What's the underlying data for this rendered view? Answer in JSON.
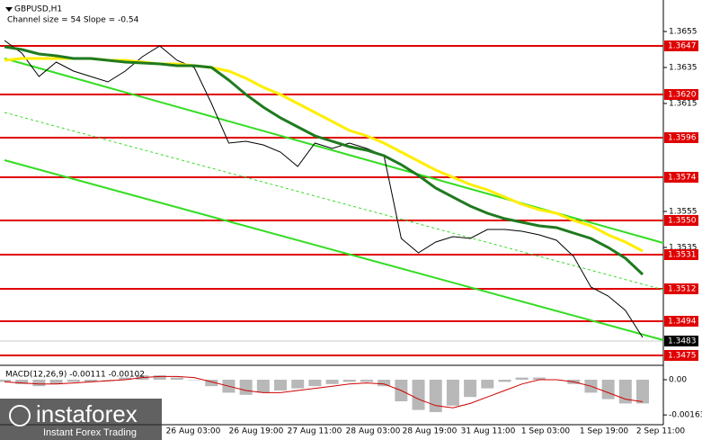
{
  "chart_data": [
    {
      "type": "line",
      "title": "GBPUSD,H1",
      "subtitle": "Channel size = 54 Slope = -0.54",
      "ylim": [
        1.347,
        1.36635
      ],
      "yticks": [
        1.3655,
        1.3635,
        1.3615,
        1.3555,
        1.3535
      ],
      "x_labels": [
        "26 Aug 03:00",
        "26 Aug 19:00",
        "27 Aug 11:00",
        "28 Aug 03:00",
        "28 Aug 19:00",
        "31 Aug 11:00",
        "1 Sep 03:00",
        "1 Sep 19:00",
        "2 Sep 11:00"
      ],
      "levels": [
        1.3647,
        {
          "value": 1.362,
          "label": "1.3620"
        },
        1.3596,
        1.3574,
        {
          "value": 1.355,
          "label": "1.3550"
        },
        1.3531,
        1.3512,
        1.3494,
        1.3475
      ],
      "level_color": "#e00000",
      "current_price": 1.3483,
      "series": [
        {
          "name": "close",
          "color": "#000000",
          "values": [
            1.365,
            1.3643,
            1.363,
            1.3638,
            1.3633,
            1.363,
            1.3627,
            1.3633,
            1.3641,
            1.3647,
            1.3639,
            1.3635,
            1.3615,
            1.3593,
            1.3594,
            1.3592,
            1.3588,
            1.358,
            1.3593,
            1.359,
            1.3593,
            1.359,
            1.3586,
            1.354,
            1.3532,
            1.3538,
            1.3541,
            1.354,
            1.3545,
            1.3545,
            1.3544,
            1.3542,
            1.3539,
            1.353,
            1.3513,
            1.3508,
            1.35,
            1.3485
          ]
        },
        {
          "name": "slow-ma",
          "color": "#ffee00",
          "values": [
            1.3639,
            1.364,
            1.364,
            1.364,
            1.364,
            1.364,
            1.3639,
            1.3639,
            1.3638,
            1.3637,
            1.3637,
            1.3636,
            1.3635,
            1.3633,
            1.3629,
            1.3624,
            1.362,
            1.3615,
            1.361,
            1.3605,
            1.36,
            1.3597,
            1.3593,
            1.3588,
            1.3583,
            1.3578,
            1.3574,
            1.357,
            1.3567,
            1.3563,
            1.3559,
            1.3556,
            1.3554,
            1.355,
            1.3547,
            1.3542,
            1.3538,
            1.3533
          ]
        },
        {
          "name": "fast-ma",
          "color": "#1f7a1f",
          "values": [
            1.36465,
            1.3645,
            1.36425,
            1.36415,
            1.364,
            1.364,
            1.3639,
            1.3638,
            1.36375,
            1.3637,
            1.3636,
            1.3636,
            1.3635,
            1.3628,
            1.362,
            1.3613,
            1.3607,
            1.3602,
            1.3597,
            1.3594,
            1.3591,
            1.3589,
            1.3586,
            1.3581,
            1.3575,
            1.3568,
            1.3563,
            1.3558,
            1.3554,
            1.3551,
            1.3549,
            1.3547,
            1.3546,
            1.3543,
            1.354,
            1.3535,
            1.3529,
            1.352
          ]
        }
      ]
    },
    {
      "type": "macd",
      "title": "MACD(12,26,9) -0.00111 -0.00102",
      "ylim": [
        -0.002,
        0.0005
      ],
      "yticks": [
        {
          "value": 0,
          "label": "0.00"
        },
        -0.00163
      ],
      "series": [
        {
          "name": "histogram",
          "color": "#b8b8b8",
          "values": [
            -0.0001,
            -0.0002,
            -0.0003,
            -0.0002,
            -0.0001,
            -0.0001,
            0,
            0.0001,
            0.0002,
            0.0002,
            0.0001,
            0,
            -0.0003,
            -0.0006,
            -0.0007,
            -0.0006,
            -0.0005,
            -0.0004,
            -0.0003,
            -0.0002,
            -0.0001,
            -0.0001,
            -0.0003,
            -0.001,
            -0.0014,
            -0.0015,
            -0.0012,
            -0.0008,
            -0.0004,
            -0.0001,
            0.0001,
            0.0001,
            0,
            -0.0002,
            -0.0006,
            -0.0009,
            -0.0011,
            -0.0011
          ]
        },
        {
          "name": "signal",
          "color": "#d00000",
          "values": [
            -0.0001,
            -0.00015,
            -0.0002,
            -0.0002,
            -0.00015,
            -0.0001,
            -5e-05,
            0,
            0.0001,
            0.00015,
            0.00015,
            0.0001,
            -0.0001,
            -0.0003,
            -0.0005,
            -0.0006,
            -0.0006,
            -0.0005,
            -0.0004,
            -0.0003,
            -0.0002,
            -0.00015,
            -0.0002,
            -0.0005,
            -0.0009,
            -0.0012,
            -0.0013,
            -0.0011,
            -0.0008,
            -0.0005,
            -0.0002,
            0,
            0,
            -0.0001,
            -0.0003,
            -0.0006,
            -0.0009,
            -0.00102
          ]
        }
      ]
    }
  ],
  "watermark": {
    "name": "instaforex",
    "tagline": "Instant Forex Trading"
  }
}
